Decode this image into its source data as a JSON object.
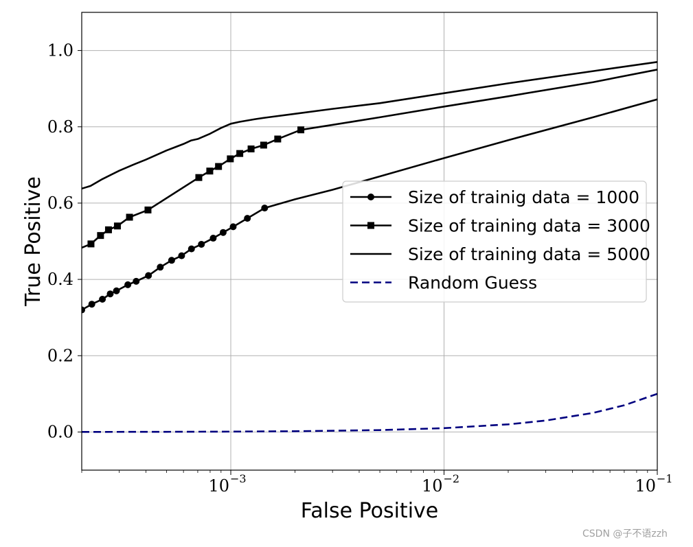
{
  "chart_data": {
    "type": "line",
    "title": "",
    "xlabel": "False Positive",
    "ylabel": "True Positive",
    "xscale": "log",
    "xlim": [
      0.0002,
      0.1
    ],
    "ylim": [
      -0.1,
      1.1
    ],
    "x_ticks": [
      {
        "value": 0.001,
        "base": "10",
        "exp": "−3"
      },
      {
        "value": 0.01,
        "base": "10",
        "exp": "−2"
      },
      {
        "value": 0.1,
        "base": "10",
        "exp": "−1"
      }
    ],
    "y_ticks": [
      {
        "value": 0.0,
        "label": "0.0"
      },
      {
        "value": 0.2,
        "label": "0.2"
      },
      {
        "value": 0.4,
        "label": "0.4"
      },
      {
        "value": 0.6,
        "label": "0.6"
      },
      {
        "value": 0.8,
        "label": "0.8"
      },
      {
        "value": 1.0,
        "label": "1.0"
      }
    ],
    "grid": true,
    "legend_position": "center-right",
    "series": [
      {
        "name": "Size of trainig data = 1000",
        "color": "#000000",
        "marker": "circle",
        "dash": "solid",
        "markers_x": [
          0.0002,
          0.000223,
          0.00025,
          0.000272,
          0.000291,
          0.000329,
          0.00036,
          0.000411,
          0.000467,
          0.000528,
          0.000588,
          0.000654,
          0.000728,
          0.000827,
          0.000921,
          0.001026,
          0.001196,
          0.001441
        ],
        "markers_y": [
          0.32,
          0.335,
          0.348,
          0.362,
          0.37,
          0.386,
          0.395,
          0.41,
          0.432,
          0.45,
          0.462,
          0.48,
          0.492,
          0.508,
          0.523,
          0.538,
          0.56,
          0.587
        ],
        "x": [
          0.0002,
          0.000223,
          0.00025,
          0.000272,
          0.000291,
          0.000329,
          0.00036,
          0.000411,
          0.000467,
          0.000528,
          0.000588,
          0.000654,
          0.000728,
          0.000827,
          0.000921,
          0.001026,
          0.001196,
          0.001441,
          0.002,
          0.003,
          0.005,
          0.01,
          0.02,
          0.05,
          0.1
        ],
        "y": [
          0.32,
          0.335,
          0.348,
          0.362,
          0.37,
          0.386,
          0.395,
          0.41,
          0.432,
          0.45,
          0.462,
          0.48,
          0.492,
          0.508,
          0.523,
          0.538,
          0.56,
          0.587,
          0.61,
          0.635,
          0.67,
          0.718,
          0.765,
          0.825,
          0.872
        ]
      },
      {
        "name": "Size of training data = 3000",
        "color": "#000000",
        "marker": "square",
        "dash": "solid",
        "markers_x": [
          0.000221,
          0.000245,
          0.000267,
          0.000294,
          0.000335,
          0.000409,
          0.000708,
          0.000797,
          0.000876,
          0.000995,
          0.001102,
          0.001245,
          0.001426,
          0.00166,
          0.002131
        ],
        "markers_y": [
          0.493,
          0.515,
          0.53,
          0.54,
          0.563,
          0.582,
          0.667,
          0.684,
          0.696,
          0.716,
          0.73,
          0.742,
          0.752,
          0.768,
          0.792
        ],
        "x": [
          0.0002,
          0.000221,
          0.000245,
          0.000267,
          0.000294,
          0.000335,
          0.000409,
          0.000708,
          0.000797,
          0.000876,
          0.000995,
          0.001102,
          0.001245,
          0.001426,
          0.00166,
          0.002131,
          0.003,
          0.005,
          0.01,
          0.02,
          0.05,
          0.1
        ],
        "y": [
          0.483,
          0.493,
          0.515,
          0.53,
          0.54,
          0.563,
          0.582,
          0.667,
          0.684,
          0.696,
          0.716,
          0.73,
          0.742,
          0.752,
          0.768,
          0.792,
          0.805,
          0.825,
          0.853,
          0.88,
          0.917,
          0.95
        ]
      },
      {
        "name": "Size of training data = 5000",
        "color": "#000000",
        "marker": "none",
        "dash": "solid",
        "x": [
          0.0002,
          0.00022,
          0.00025,
          0.0003,
          0.00035,
          0.0004,
          0.0005,
          0.0006,
          0.00065,
          0.0007,
          0.0008,
          0.0009,
          0.001,
          0.0011,
          0.0013,
          0.0015,
          0.002,
          0.003,
          0.005,
          0.01,
          0.02,
          0.05,
          0.1
        ],
        "y": [
          0.638,
          0.645,
          0.663,
          0.685,
          0.701,
          0.714,
          0.738,
          0.755,
          0.764,
          0.768,
          0.782,
          0.797,
          0.808,
          0.813,
          0.82,
          0.825,
          0.834,
          0.847,
          0.862,
          0.888,
          0.914,
          0.946,
          0.97
        ]
      },
      {
        "name": "Random Guess",
        "color": "#00007f",
        "marker": "none",
        "dash": "dashed",
        "x": [
          0.0002,
          0.0005,
          0.001,
          0.002,
          0.005,
          0.01,
          0.02,
          0.03,
          0.05,
          0.07,
          0.1
        ],
        "y": [
          0.0002,
          0.0005,
          0.001,
          0.002,
          0.005,
          0.01,
          0.02,
          0.03,
          0.05,
          0.07,
          0.1
        ]
      }
    ]
  },
  "watermark": "CSDN @子不语zzh"
}
